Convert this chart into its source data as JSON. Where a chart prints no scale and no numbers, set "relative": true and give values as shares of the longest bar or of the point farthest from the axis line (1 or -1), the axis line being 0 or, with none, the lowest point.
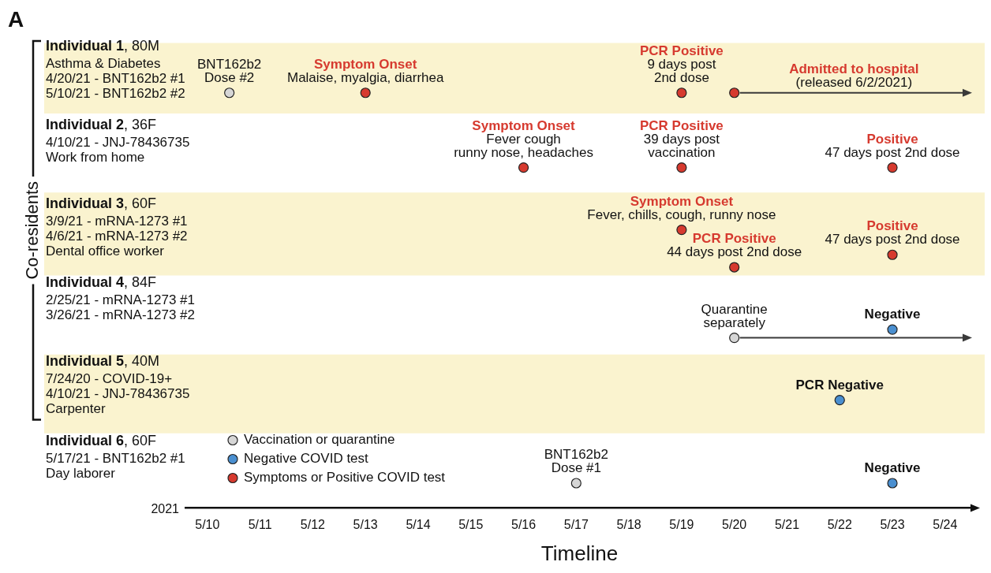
{
  "chart_data": {
    "type": "scatter",
    "title": "A",
    "xlabel": "Timeline",
    "relative": true,
    "xlim": [
      "2021-05-09T14:00",
      "2021-05-24T13:00"
    ],
    "xticks": [
      {
        "value": "2021-05-10",
        "label": "5/10"
      },
      {
        "value": "2021-05-11",
        "label": "5/11"
      },
      {
        "value": "2021-05-12",
        "label": "5/12"
      },
      {
        "value": "2021-05-13",
        "label": "5/13"
      },
      {
        "value": "2021-05-14",
        "label": "5/14"
      },
      {
        "value": "2021-05-15",
        "label": "5/15"
      },
      {
        "value": "2021-05-16",
        "label": "5/16"
      },
      {
        "value": "2021-05-17",
        "label": "5/17"
      },
      {
        "value": "2021-05-18",
        "label": "5/18"
      },
      {
        "value": "2021-05-19",
        "label": "5/19"
      },
      {
        "value": "2021-05-20",
        "label": "5/20"
      },
      {
        "value": "2021-05-21",
        "label": "5/21"
      },
      {
        "value": "2021-05-22",
        "label": "5/22"
      },
      {
        "value": "2021-05-23",
        "label": "5/23"
      },
      {
        "value": "2021-05-24",
        "label": "5/24"
      }
    ],
    "series": [
      {
        "name": "Vaccination or quarantine",
        "color": "#d6d6d6",
        "x": [
          "2021-05-10T10:00",
          "2021-05-20",
          "2021-05-17"
        ],
        "values": [
          1.0,
          0.41,
          0.06
        ]
      },
      {
        "name": "Negative COVID test",
        "color": "#4a8fd0",
        "x": [
          "2021-05-23",
          "2021-05-22",
          "2021-05-23"
        ],
        "values": [
          0.43,
          0.26,
          0.06
        ]
      },
      {
        "name": "Symptoms or Positive COVID test",
        "color": "#d63a2f",
        "x": [
          "2021-05-13",
          "2021-05-19",
          "2021-05-20",
          "2021-05-16",
          "2021-05-19",
          "2021-05-23",
          "2021-05-19",
          "2021-05-20",
          "2021-05-23"
        ],
        "values": [
          1.0,
          1.0,
          1.0,
          0.82,
          0.82,
          0.82,
          0.67,
          0.58,
          0.61
        ]
      }
    ],
    "bands": [
      {
        "axis": "y",
        "from": 0.95,
        "to": 1.12,
        "color": "#faf3cf"
      },
      {
        "axis": "y",
        "from": 0.56,
        "to": 0.76,
        "color": "#faf3cf"
      },
      {
        "axis": "y",
        "from": 0.18,
        "to": 0.37,
        "color": "#faf3cf"
      }
    ],
    "annotations": [
      "2021",
      "Co-residents",
      "Admitted to hospital\n(released 6/2/2021)",
      "Individual 1, 80M\nAsthma & Diabetes\n4/20/21 - BNT162b2 #1\n5/10/21 - BNT162b2 #2",
      "Individual 2, 36F\n4/10/21 - JNJ-78436735\nWork from home",
      "Individual 3, 60F\n3/9/21 - mRNA-1273 #1\n4/6/21 - mRNA-1273 #2\nDental office worker",
      "Individual 4, 84F\n2/25/21 - mRNA-1273 #1\n3/26/21 - mRNA-1273 #2",
      "Individual 5, 40M\n7/24/20 - COVID-19+\n4/10/21 - JNJ-78436735\nCarpenter",
      "Individual 6, 60F\n5/17/21 - BNT162b2 #1\nDay laborer",
      {
        "text": "BNT162b2\nDose #2",
        "x": "2021-05-10T10:00",
        "y": 1.0
      },
      {
        "text": "Symptom Onset\nMalaise, myalgia, diarrhea",
        "x": "2021-05-13",
        "y": 1.0
      },
      {
        "text": "PCR Positive\n9 days post\n2nd dose",
        "x": "2021-05-19",
        "y": 1.0
      },
      {
        "text": "Symptom Onset\nFever cough\nrunny nose, headaches",
        "x": "2021-05-16",
        "y": 0.82
      },
      {
        "text": "PCR Positive\n39 days post\nvaccination",
        "x": "2021-05-19",
        "y": 0.82
      },
      {
        "text": "Positive\n47 days post 2nd dose",
        "x": "2021-05-23",
        "y": 0.82
      },
      {
        "text": "Symptom Onset\nFever, chills, cough, runny nose",
        "x": "2021-05-19",
        "y": 0.67
      },
      {
        "text": "PCR Positive\n44 days post 2nd dose",
        "x": "2021-05-20",
        "y": 0.58
      },
      {
        "text": "Positive\n47 days post 2nd dose",
        "x": "2021-05-23",
        "y": 0.61
      },
      {
        "text": "Quarantine\nseparately",
        "x": "2021-05-20",
        "y": 0.41
      },
      {
        "text": "Negative",
        "x": "2021-05-23",
        "y": 0.43
      },
      {
        "text": "PCR Negative",
        "x": "2021-05-22",
        "y": 0.26
      },
      {
        "text": "BNT162b2\nDose #1",
        "x": "2021-05-17",
        "y": 0.06
      },
      {
        "text": "Negative",
        "x": "2021-05-23",
        "y": 0.06
      }
    ],
    "legend": "bottom left",
    "marker": "circle",
    "grid": false
  }
}
